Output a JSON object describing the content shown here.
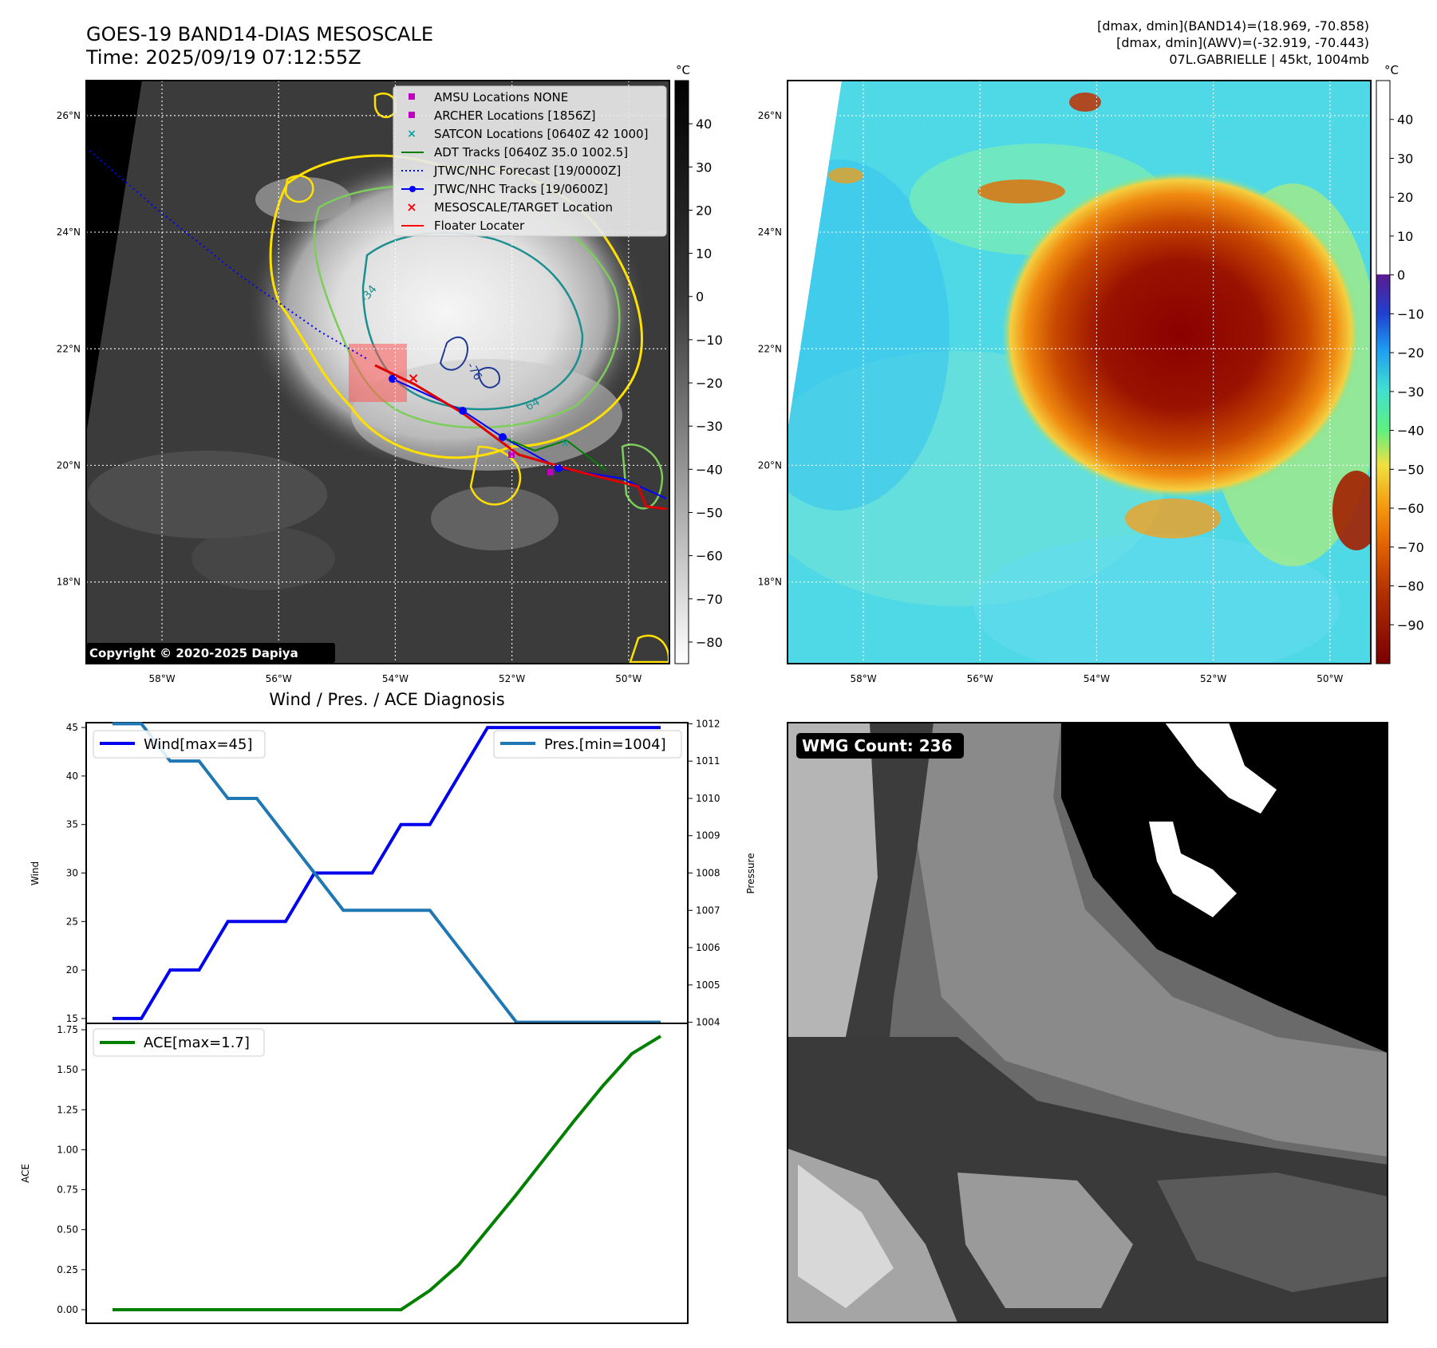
{
  "header": {
    "title_line1": "GOES-19 BAND14-DIAS MESOSCALE",
    "title_line2": "Time: 2025/09/19 07:12:55Z",
    "stats_line1": "[dmax, dmin](BAND14)=(18.969, -70.858)",
    "stats_line2": "[dmax, dmin](AWV)=(-32.919, -70.443)",
    "stats_line3": "07L.GABRIELLE | 45kt, 1004mb"
  },
  "colors": {
    "wind": "#0000ee",
    "pressure": "#1f77b4",
    "ace": "#008000",
    "contour_yellow": "#ffe000",
    "contour_green": "#7ccd5a",
    "contour_teal": "#1d8f8f",
    "floater": "#dd0000",
    "forecast": "#0000ff"
  },
  "map_axes": {
    "lat_labels": [
      "26°N",
      "24°N",
      "22°N",
      "20°N",
      "18°N"
    ],
    "lat_values": [
      26,
      24,
      22,
      20,
      18
    ],
    "lon_labels": [
      "58°W",
      "56°W",
      "54°W",
      "52°W",
      "50°W"
    ],
    "lon_values": [
      -58,
      -56,
      -54,
      -52,
      -50
    ],
    "lat_range": [
      16.6,
      26.6
    ],
    "lon_range": [
      -59.3,
      -49.3
    ]
  },
  "ir_panel": {
    "unit": "°C",
    "colorbar_ticks": [
      "40",
      "30",
      "20",
      "10",
      "0",
      "−10",
      "−20",
      "−30",
      "−40",
      "−50",
      "−60",
      "−70",
      "−80"
    ],
    "colorbar_values": [
      40,
      30,
      20,
      10,
      0,
      -10,
      -20,
      -30,
      -40,
      -50,
      -60,
      -70,
      -80
    ],
    "colorbar_range": [
      -85,
      50
    ],
    "contour_labels": [
      "-34",
      "-76",
      "64"
    ],
    "copyright": "Copyright © 2020-2025 Dapiya",
    "legend": [
      {
        "label": "AMSU Locations NONE",
        "marker": "square",
        "color": "#c000c0"
      },
      {
        "label": "ARCHER Locations [1856Z]",
        "marker": "square",
        "color": "#c000c0"
      },
      {
        "label": "SATCON Locations [0640Z 42 1000]",
        "marker": "x",
        "color": "#00a0a0"
      },
      {
        "label": "ADT Tracks [0640Z 35.0 1002.5]",
        "marker": "line",
        "color": "#008000"
      },
      {
        "label": "JTWC/NHC Forecast [19/0000Z]",
        "marker": "dotted",
        "color": "#0000ff"
      },
      {
        "label": "JTWC/NHC Tracks [19/0600Z]",
        "marker": "line-dot",
        "color": "#0000ff"
      },
      {
        "label": "MESOSCALE/TARGET Location",
        "marker": "x",
        "color": "#ff0000"
      },
      {
        "label": "Floater Locater",
        "marker": "line",
        "color": "#ff0000"
      }
    ]
  },
  "awv_panel": {
    "unit": "°C",
    "colorbar_ticks": [
      "40",
      "30",
      "20",
      "10",
      "0",
      "−10",
      "−20",
      "−30",
      "−40",
      "−50",
      "−60",
      "−70",
      "−80",
      "−90"
    ],
    "colorbar_values": [
      40,
      30,
      20,
      10,
      0,
      -10,
      -20,
      -30,
      -40,
      -50,
      -60,
      -70,
      -80,
      -90
    ],
    "colorbar_range": [
      -100,
      50
    ]
  },
  "diagnosis": {
    "title": "Wind / Pres. / ACE Diagnosis",
    "wind_ylabel": "Wind",
    "pressure_ylabel": "Pressure",
    "ace_ylabel": "ACE"
  },
  "wmg": {
    "label": "WMG Count: 236"
  },
  "chart_data": [
    {
      "type": "line",
      "title": "Wind / Pres. / ACE Diagnosis",
      "x": [
        0,
        1,
        2,
        3,
        4,
        5,
        6,
        7,
        8,
        9,
        10,
        11,
        12,
        13,
        14,
        15,
        16,
        17,
        18,
        19
      ],
      "series": [
        {
          "name": "Wind[max=45]",
          "axis": "left",
          "values": [
            15,
            15,
            20,
            20,
            25,
            25,
            25,
            30,
            30,
            30,
            35,
            35,
            40,
            45,
            45,
            45,
            45,
            45,
            45,
            45
          ]
        },
        {
          "name": "Pres.[min=1004]",
          "axis": "right",
          "values": [
            1012,
            1012,
            1011,
            1011,
            1010,
            1010,
            1009,
            1008,
            1007,
            1007,
            1007,
            1007,
            1006,
            1005,
            1004,
            1004,
            1004,
            1004,
            1004,
            1004
          ]
        }
      ],
      "ylabel": "Wind",
      "y2label": "Pressure",
      "ylim": [
        14.5,
        45.5
      ],
      "y2lim": [
        1003.97,
        1012.03
      ],
      "yticks": [
        15,
        20,
        25,
        30,
        35,
        40,
        45
      ],
      "y2ticks": [
        1004,
        1005,
        1006,
        1007,
        1008,
        1009,
        1010,
        1011,
        1012
      ],
      "legend": [
        "top-left",
        "top-right"
      ]
    },
    {
      "type": "line",
      "x": [
        0,
        1,
        2,
        3,
        4,
        5,
        6,
        7,
        8,
        9,
        10,
        11,
        12,
        13,
        14,
        15,
        16,
        17,
        18,
        19
      ],
      "series": [
        {
          "name": "ACE[max=1.7]",
          "values": [
            0,
            0,
            0,
            0,
            0,
            0,
            0,
            0,
            0,
            0,
            0,
            0.12,
            0.28,
            0.5,
            0.72,
            0.95,
            1.18,
            1.4,
            1.6,
            1.71
          ]
        }
      ],
      "ylabel": "ACE",
      "ylim": [
        -0.085,
        1.79
      ],
      "yticks": [
        0.0,
        0.25,
        0.5,
        0.75,
        1.0,
        1.25,
        1.5,
        1.75
      ],
      "ytick_labels": [
        "0.00",
        "0.25",
        "0.50",
        "0.75",
        "1.00",
        "1.25",
        "1.50",
        "1.75"
      ],
      "legend": "top-left"
    }
  ]
}
